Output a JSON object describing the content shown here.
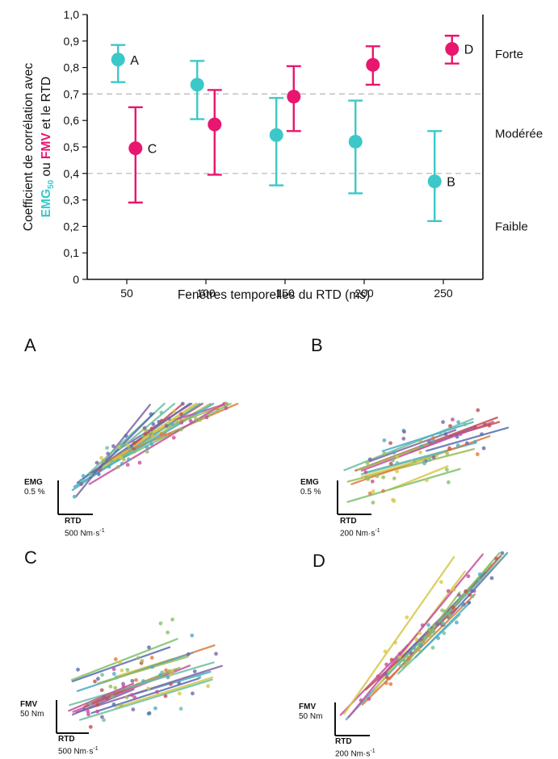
{
  "chart_data": {
    "type": "scatter",
    "ylabel": {
      "line1": "Coefficient de corrélation avec",
      "emg": "EMG",
      "emg_sub": "50",
      "middle": " ou ",
      "fmv": "FMV",
      "end": " et le RTD"
    },
    "xlabel": "Fenêtres temporelles du RTD (ms)",
    "categories": [
      "50",
      "100",
      "150",
      "200",
      "250"
    ],
    "ylim": [
      0,
      1
    ],
    "y_ticks": [
      "0",
      "0,1",
      "0,2",
      "0,3",
      "0,4",
      "0,5",
      "0,6",
      "0,7",
      "0,8",
      "0,9",
      "1,0"
    ],
    "thresholds": [
      0.4,
      0.7
    ],
    "zones": [
      {
        "label": "Forte",
        "y": 0.85
      },
      {
        "label": "Modérée",
        "y": 0.55
      },
      {
        "label": "Faible",
        "y": 0.2
      }
    ],
    "series": [
      {
        "name": "EMG50",
        "color": "#3cc8c8",
        "values": [
          0.83,
          0.735,
          0.545,
          0.52,
          0.37
        ],
        "lower": [
          0.745,
          0.605,
          0.355,
          0.325,
          0.22
        ],
        "upper": [
          0.885,
          0.825,
          0.685,
          0.675,
          0.56
        ]
      },
      {
        "name": "FMV",
        "color": "#e8166e",
        "values": [
          0.495,
          0.585,
          0.69,
          0.81,
          0.87
        ],
        "lower": [
          0.29,
          0.395,
          0.56,
          0.735,
          0.815
        ],
        "upper": [
          0.65,
          0.715,
          0.805,
          0.88,
          0.92
        ]
      }
    ],
    "point_labels": [
      {
        "text": "A",
        "series": 0,
        "index": 0
      },
      {
        "text": "B",
        "series": 0,
        "index": 4
      },
      {
        "text": "C",
        "series": 1,
        "index": 0
      },
      {
        "text": "D",
        "series": 1,
        "index": 4
      }
    ]
  },
  "panels": [
    {
      "letter": "A",
      "y_title": "EMG",
      "y_scale": "0.5 %",
      "x_title": "RTD",
      "x_scale": "500 Nm",
      "x_unit": "·s",
      "x_exp": "-1"
    },
    {
      "letter": "B",
      "y_title": "EMG",
      "y_scale": "0.5 %",
      "x_title": "RTD",
      "x_scale": "200 Nm",
      "x_unit": "·s",
      "x_exp": "-1"
    },
    {
      "letter": "C",
      "y_title": "FMV",
      "y_scale": "50 Nm",
      "x_title": "RTD",
      "x_scale": "500 Nm",
      "x_unit": "·s",
      "x_exp": "-1"
    },
    {
      "letter": "D",
      "y_title": "FMV",
      "y_scale": "50 Nm",
      "x_title": "RTD",
      "x_scale": "200 Nm",
      "x_unit": "·s",
      "x_exp": "-1"
    }
  ],
  "palette": [
    "#c0504d",
    "#4bacc6",
    "#9bbb59",
    "#8064a2",
    "#d6c84b",
    "#6bbfa0",
    "#c64f9e",
    "#5b6bb0",
    "#e07b39",
    "#7fc36b"
  ]
}
